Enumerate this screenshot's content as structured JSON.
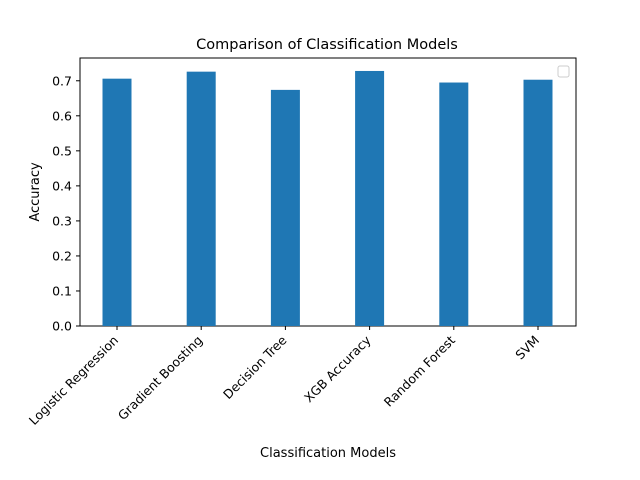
{
  "chart_data": {
    "type": "bar",
    "title": "Comparison of Classification Models",
    "xlabel": "Classification Models",
    "ylabel": "Accuracy",
    "categories": [
      "Logistic Regression",
      "Gradient Boosting",
      "Decision Tree",
      "XGB Accuracy",
      "Random Forest",
      "SVM"
    ],
    "values": [
      0.706,
      0.726,
      0.674,
      0.728,
      0.695,
      0.703
    ],
    "ylim": [
      0,
      0.765
    ],
    "yticks": [
      0.0,
      0.1,
      0.2,
      0.3,
      0.4,
      0.5,
      0.6,
      0.7
    ],
    "bar_color": "#1f77b4",
    "grid": false,
    "legend": {
      "placement": "top-right",
      "entries": []
    }
  }
}
